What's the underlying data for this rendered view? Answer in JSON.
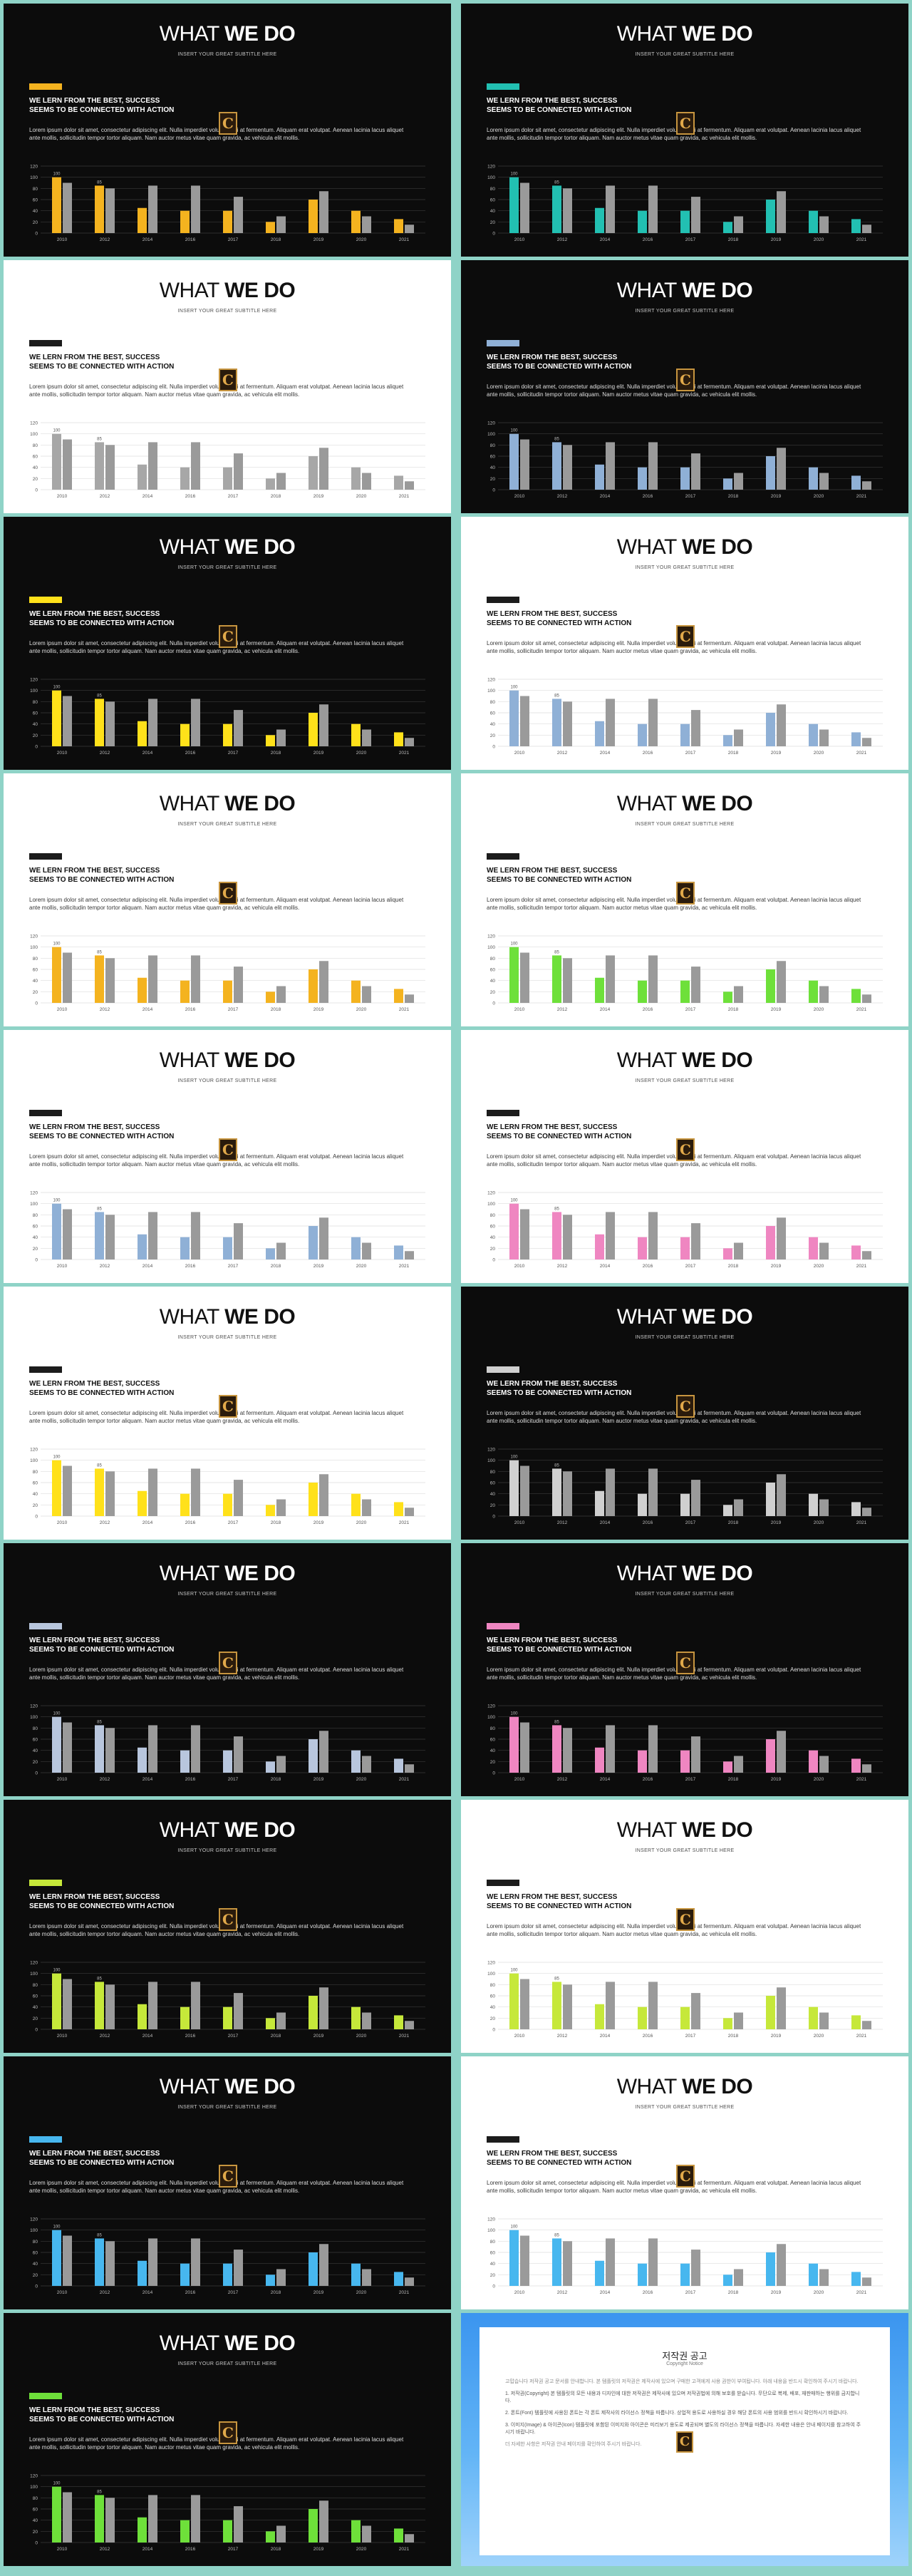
{
  "slide_text": {
    "title_light": "WHAT ",
    "title_bold": "WE DO",
    "subtitle": "INSERT YOUR GREAT SUBTITLE HERE",
    "heading": "WE LERN FROM THE BEST, SUCCESS\nSEEMS TO BE CONNECTED WITH ACTION",
    "body": "Lorem ipsum dolor sit amet, consectetur adipiscing elit. Nulla imperdiet volutpat dui at fermentum. Aliquam erat volutpat. Aenean lacinia lacus aliquet ante mollis, sollicitudin tempor tortor aliquam. Nam auctor metus vitae quam gravida, ac vehicula elit mollis.",
    "logo_letter": "C"
  },
  "colors": {
    "dark_bg": "#0c0c0c",
    "light_bg": "#ffffff",
    "page_bg": "#8fd3c7",
    "secondary_bar": "#9a9a9a"
  },
  "chart_data": {
    "type": "bar",
    "categories": [
      "2010",
      "2012",
      "2014",
      "2016",
      "2017",
      "2018",
      "2019",
      "2020",
      "2021"
    ],
    "ylim": [
      0,
      120
    ],
    "yticks": [
      0,
      20,
      40,
      60,
      80,
      100,
      120
    ],
    "series": [
      {
        "values": [
          100,
          85,
          45,
          40,
          40,
          20,
          60,
          40,
          25
        ]
      },
      {
        "values": [
          90,
          80,
          85,
          85,
          65,
          30,
          75,
          30,
          15
        ]
      }
    ],
    "data_labels": [
      {
        "category": "2010",
        "text": "100"
      },
      {
        "category": "2012",
        "text": "85"
      }
    ]
  },
  "slides": [
    {
      "theme": "dark",
      "accent": "#f4b31f"
    },
    {
      "theme": "dark",
      "accent": "#22c0b2"
    },
    {
      "theme": "light",
      "accent": "#1c1c1c",
      "primary": "#a7a7a7"
    },
    {
      "theme": "dark",
      "accent": "#8fb0d6"
    },
    {
      "theme": "dark",
      "accent": "#ffe11a"
    },
    {
      "theme": "light",
      "accent": "#1c1c1c",
      "primary": "#8fb0d6"
    },
    {
      "theme": "light",
      "accent": "#1c1c1c",
      "primary": "#f4b31f"
    },
    {
      "theme": "light",
      "accent": "#1c1c1c",
      "primary": "#6ee03a"
    },
    {
      "theme": "light",
      "accent": "#1c1c1c",
      "primary": "#8fb0d6"
    },
    {
      "theme": "light",
      "accent": "#1c1c1c",
      "primary": "#ef86c1"
    },
    {
      "theme": "light",
      "accent": "#1c1c1c",
      "primary": "#ffe11a"
    },
    {
      "theme": "dark",
      "accent": "#d0d0d0"
    },
    {
      "theme": "dark",
      "accent": "#b8c6dd"
    },
    {
      "theme": "dark",
      "accent": "#ef86c1"
    },
    {
      "theme": "dark",
      "accent": "#c6e83a"
    },
    {
      "theme": "light",
      "accent": "#1c1c1c",
      "primary": "#c6e83a"
    },
    {
      "theme": "dark",
      "accent": "#47b7ef"
    },
    {
      "theme": "light",
      "accent": "#1c1c1c",
      "primary": "#47b7ef"
    },
    {
      "theme": "dark",
      "accent": "#6ee03a"
    }
  ],
  "notice": {
    "title": "저작권 공고",
    "subtitle": "Copyright Notice",
    "paragraphs": [
      {
        "heading": false,
        "text": "고맙습니다 저작권 공고 문서를 안내합니다. 본 템플릿의 저작권은 제작사에 있으며 구매한 고객에게 사용 권한이 부여됩니다. 아래 내용을 반드시 확인하여 주시기 바랍니다."
      },
      {
        "heading": true,
        "text": "1. 저작권(Copyright) 본 템플릿의 모든 내용과 디자인에 대한 저작권은 제작사에 있으며 저작권법에 의해 보호를 받습니다. 무단으로 복제, 배포, 재판매하는 행위를 금지합니다."
      },
      {
        "heading": true,
        "text": "2. 폰트(Font) 템플릿에 사용된 폰트는 각 폰트 제작사의 라이선스 정책을 따릅니다. 상업적 용도로 사용하실 경우 해당 폰트의 사용 범위를 반드시 확인하시기 바랍니다."
      },
      {
        "heading": true,
        "text": "3. 이미지(Image) & 아이콘(Icon) 템플릿에 포함된 이미지와 아이콘은 미리보기 용도로 제공되며 별도의 라이선스 정책을 따릅니다. 자세한 내용은 안내 페이지를 참고하여 주시기 바랍니다."
      },
      {
        "heading": false,
        "text": "더 자세한 사항은 저작권 안내 페이지를 확인하여 주시기 바랍니다."
      }
    ]
  }
}
